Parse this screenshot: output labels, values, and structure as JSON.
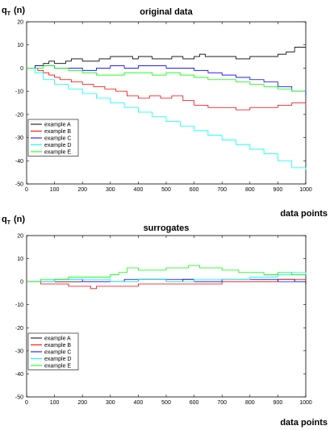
{
  "chart_data": [
    {
      "type": "line",
      "title": "original data",
      "ylabel": "q",
      "ylabel_sub": "T",
      "ylabel_suffix": "(n)",
      "xlabel": "data points",
      "xlim": [
        0,
        1000
      ],
      "ylim": [
        -50,
        20
      ],
      "xticks": [
        0,
        100,
        200,
        300,
        400,
        500,
        600,
        700,
        800,
        900,
        1000
      ],
      "yticks": [
        20,
        10,
        0,
        -10,
        -20,
        -30,
        -40,
        -50
      ],
      "grid": false,
      "legend_position": "lower-left",
      "series": [
        {
          "name": "example A",
          "color": "#000000",
          "x": [
            0,
            30,
            60,
            80,
            100,
            140,
            160,
            200,
            260,
            300,
            380,
            400,
            450,
            520,
            560,
            600,
            620,
            640,
            700,
            750,
            800,
            850,
            900,
            930,
            960,
            1000
          ],
          "y": [
            0,
            1,
            2,
            3,
            2,
            3,
            4,
            3,
            4,
            5,
            4,
            5,
            4,
            5,
            4,
            5,
            6,
            5,
            5,
            4,
            5,
            5,
            6,
            7,
            9,
            9
          ]
        },
        {
          "name": "example B",
          "color": "#ff0000",
          "x": [
            0,
            20,
            40,
            60,
            80,
            100,
            120,
            140,
            160,
            200,
            240,
            280,
            320,
            360,
            400,
            440,
            480,
            520,
            560,
            600,
            650,
            700,
            750,
            800,
            850,
            900,
            950,
            1000
          ],
          "y": [
            0,
            0,
            -1,
            -2,
            -3,
            -4,
            -5,
            -5,
            -6,
            -7,
            -8,
            -9,
            -10,
            -12,
            -13,
            -12,
            -13,
            -12,
            -14,
            -16,
            -17,
            -17,
            -18,
            -17,
            -17,
            -16,
            -15,
            -16
          ]
        },
        {
          "name": "example C",
          "color": "#0000ff",
          "x": [
            0,
            30,
            60,
            100,
            150,
            200,
            250,
            300,
            350,
            400,
            450,
            500,
            550,
            600,
            650,
            700,
            750,
            800,
            850,
            900,
            950,
            1000
          ],
          "y": [
            0,
            1,
            1,
            0,
            0,
            -1,
            0,
            1,
            0,
            1,
            1,
            0,
            0,
            -1,
            -2,
            -3,
            -4,
            -5,
            -6,
            -8,
            -10,
            -12
          ]
        },
        {
          "name": "example D",
          "color": "#00ffff",
          "x": [
            0,
            30,
            60,
            100,
            150,
            200,
            250,
            300,
            350,
            400,
            450,
            500,
            550,
            600,
            650,
            700,
            750,
            800,
            850,
            900,
            950,
            1000
          ],
          "y": [
            0,
            -2,
            -5,
            -7,
            -9,
            -11,
            -13,
            -15,
            -17,
            -19,
            -21,
            -23,
            -25,
            -27,
            -29,
            -31,
            -33,
            -35,
            -37,
            -40,
            -43,
            -44
          ]
        },
        {
          "name": "example E",
          "color": "#00ff00",
          "x": [
            0,
            30,
            60,
            100,
            150,
            200,
            250,
            300,
            350,
            400,
            450,
            500,
            550,
            600,
            650,
            700,
            750,
            800,
            850,
            900,
            950,
            1000
          ],
          "y": [
            0,
            0,
            1,
            0,
            -1,
            -2,
            -3,
            -3,
            -2,
            -2,
            -3,
            -2,
            -3,
            -4,
            -5,
            -5,
            -6,
            -7,
            -8,
            -9,
            -10,
            -10
          ]
        }
      ]
    },
    {
      "type": "line",
      "title": "surrogates",
      "ylabel": "q",
      "ylabel_sub": "T",
      "ylabel_suffix": "(n)",
      "xlabel": "data points",
      "xlim": [
        0,
        1000
      ],
      "ylim": [
        -50,
        20
      ],
      "xticks": [
        0,
        100,
        200,
        300,
        400,
        500,
        600,
        700,
        800,
        900,
        1000
      ],
      "yticks": [
        20,
        10,
        0,
        -10,
        -20,
        -30,
        -40,
        -50
      ],
      "grid": false,
      "legend_position": "lower-left",
      "series": [
        {
          "name": "example A",
          "color": "#000000",
          "x": [
            0,
            100,
            200,
            300,
            400,
            500,
            560,
            600,
            700,
            800,
            900,
            960,
            1000
          ],
          "y": [
            0,
            0,
            0,
            0,
            1,
            0,
            1,
            0,
            0,
            0,
            1,
            0,
            -1
          ]
        },
        {
          "name": "example B",
          "color": "#ff0000",
          "x": [
            0,
            50,
            100,
            150,
            200,
            230,
            250,
            300,
            400,
            500,
            600,
            700,
            800,
            900,
            1000
          ],
          "y": [
            0,
            -1,
            -1,
            -2,
            -2,
            -3,
            -2,
            -2,
            -1,
            -1,
            -1,
            0,
            0,
            1,
            1
          ]
        },
        {
          "name": "example C",
          "color": "#0000ff",
          "x": [
            0,
            100,
            200,
            300,
            350,
            400,
            500,
            600,
            700,
            800,
            900,
            1000
          ],
          "y": [
            0,
            1,
            0,
            0,
            1,
            1,
            1,
            0,
            1,
            1,
            0,
            0
          ]
        },
        {
          "name": "example D",
          "color": "#00ffff",
          "x": [
            0,
            100,
            200,
            300,
            400,
            500,
            600,
            700,
            800,
            900,
            950,
            1000
          ],
          "y": [
            0,
            1,
            1,
            0,
            1,
            0,
            1,
            1,
            2,
            3,
            4,
            3
          ]
        },
        {
          "name": "example E",
          "color": "#00ff00",
          "x": [
            0,
            50,
            100,
            150,
            200,
            250,
            300,
            330,
            360,
            400,
            450,
            500,
            550,
            580,
            620,
            700,
            760,
            800,
            850,
            900,
            950,
            1000
          ],
          "y": [
            0,
            1,
            1,
            2,
            2,
            2,
            3,
            4,
            6,
            5,
            5,
            6,
            6,
            7,
            6,
            5,
            4,
            4,
            3,
            4,
            3,
            3
          ]
        }
      ]
    }
  ]
}
